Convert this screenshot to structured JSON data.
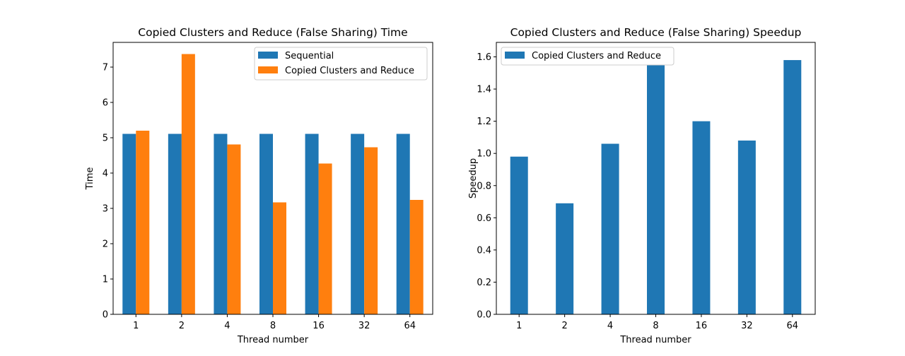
{
  "chart_data": [
    {
      "type": "bar",
      "title": "Copied Clusters and Reduce (False Sharing) Time",
      "xlabel": "Thread number",
      "ylabel": "Time",
      "categories": [
        "1",
        "2",
        "4",
        "8",
        "16",
        "32",
        "64"
      ],
      "ylim": [
        0,
        7.7
      ],
      "yticks": [
        0,
        1,
        2,
        3,
        4,
        5,
        6,
        7
      ],
      "grid": false,
      "legend_position": "top-right",
      "series": [
        {
          "name": "Sequential",
          "color": "#1f77b4",
          "values": [
            5.11,
            5.11,
            5.11,
            5.11,
            5.11,
            5.11,
            5.11
          ]
        },
        {
          "name": "Copied Clusters and Reduce",
          "color": "#ff7f0e",
          "values": [
            5.2,
            7.37,
            4.81,
            3.17,
            4.27,
            4.73,
            3.24
          ]
        }
      ]
    },
    {
      "type": "bar",
      "title": "Copied Clusters and Reduce (False Sharing) Speedup",
      "xlabel": "Thread number",
      "ylabel": "Speedup",
      "categories": [
        "1",
        "2",
        "4",
        "8",
        "16",
        "32",
        "64"
      ],
      "ylim": [
        0,
        1.69
      ],
      "yticks": [
        0.0,
        0.2,
        0.4,
        0.6,
        0.8,
        1.0,
        1.2,
        1.4,
        1.6
      ],
      "ytick_labels": [
        "0.0",
        "0.2",
        "0.4",
        "0.6",
        "0.8",
        "1.0",
        "1.2",
        "1.4",
        "1.6"
      ],
      "grid": false,
      "legend_position": "top-left",
      "series": [
        {
          "name": "Copied Clusters and Reduce",
          "color": "#1f77b4",
          "values": [
            0.98,
            0.69,
            1.06,
            1.61,
            1.2,
            1.08,
            1.58
          ]
        }
      ]
    }
  ]
}
